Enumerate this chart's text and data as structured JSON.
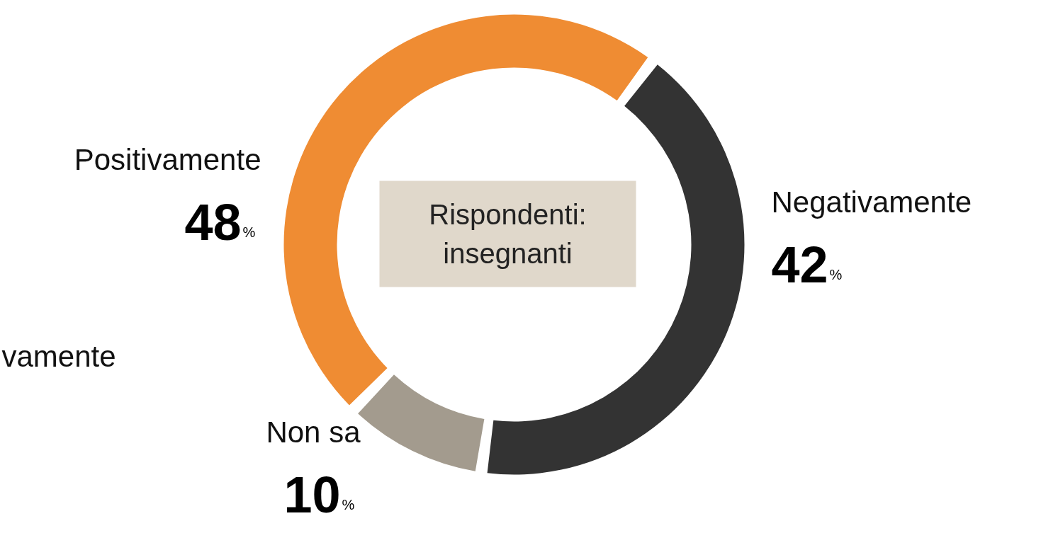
{
  "chart_data": {
    "type": "donut",
    "subtitle": "Rispondenti:\ninsegnanti",
    "categories": [
      "Negativamente",
      "Non sa",
      "Positivamente"
    ],
    "values": [
      42,
      10,
      48
    ],
    "colors": [
      "#333333",
      "#a39b8e",
      "#ef8c33"
    ],
    "value_labels": [
      "42%",
      "10%",
      "48%"
    ],
    "annotations": [
      "vamente"
    ]
  }
}
